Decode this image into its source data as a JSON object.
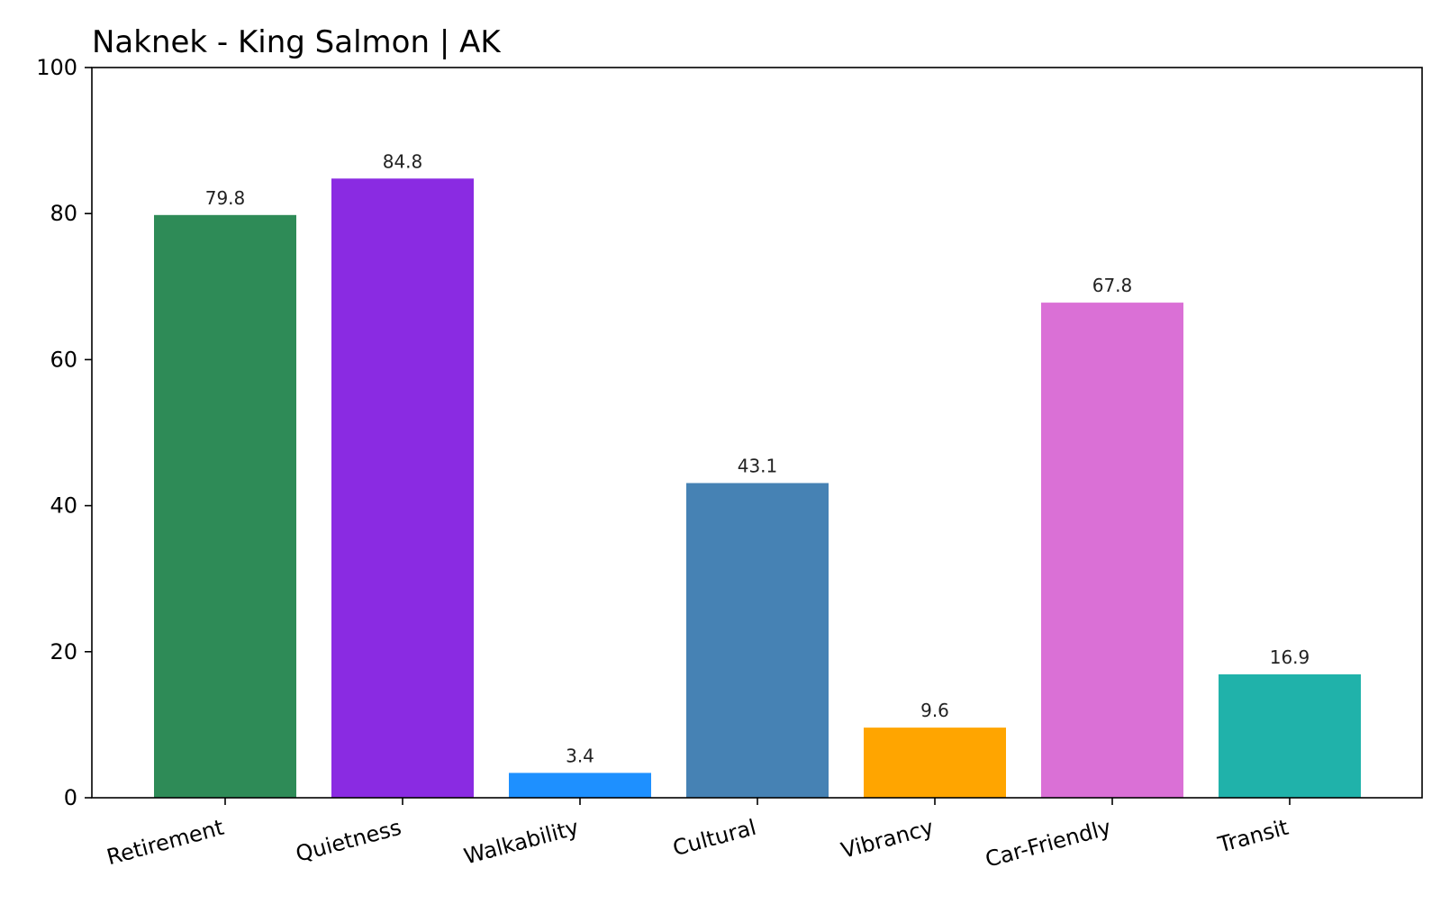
{
  "chart_data": {
    "type": "bar",
    "title": "Naknek - King Salmon | AK",
    "xlabel": "",
    "ylabel": "",
    "categories": [
      "Retirement",
      "Quietness",
      "Walkability",
      "Cultural",
      "Vibrancy",
      "Car-Friendly",
      "Transit"
    ],
    "values": [
      79.8,
      84.8,
      3.4,
      43.1,
      9.6,
      67.8,
      16.9
    ],
    "value_labels": [
      "79.8",
      "84.8",
      "3.4",
      "43.1",
      "9.6",
      "67.8",
      "16.9"
    ],
    "colors": [
      "#2e8b57",
      "#8a2be2",
      "#1e90ff",
      "#4682b4",
      "#ffa500",
      "#da70d6",
      "#20b2aa"
    ],
    "ylim": [
      0,
      100
    ],
    "yticks": [
      0,
      20,
      40,
      60,
      80,
      100
    ],
    "ytick_labels": [
      "0",
      "20",
      "40",
      "60",
      "80",
      "100"
    ],
    "grid": false,
    "legend": "none"
  }
}
